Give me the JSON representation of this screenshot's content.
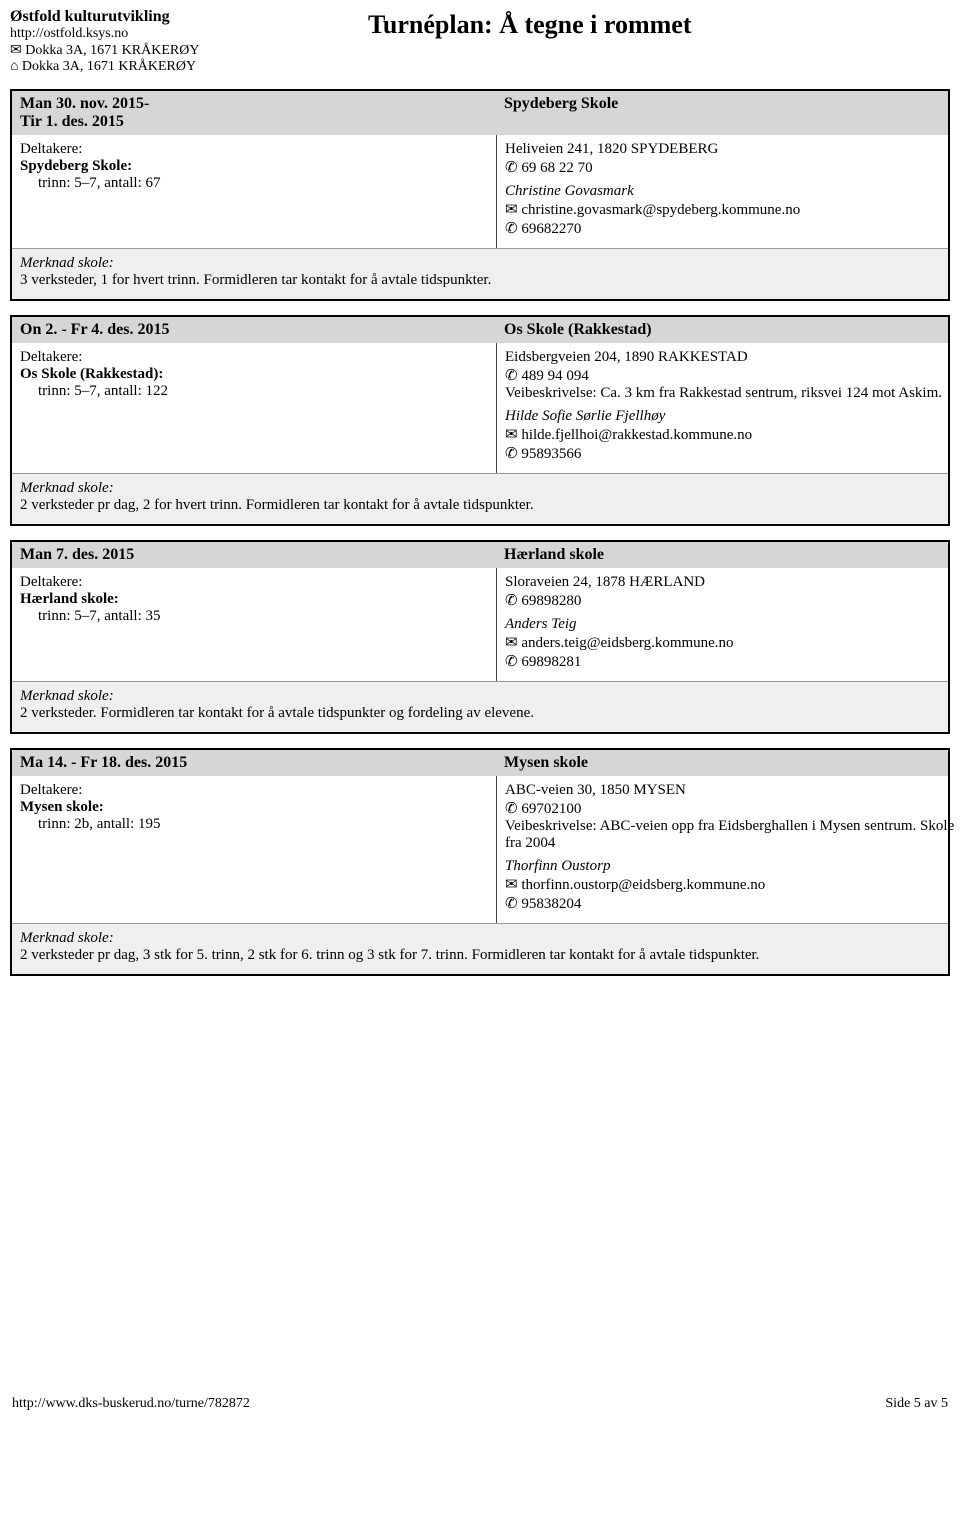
{
  "header": {
    "org": "Østfold kulturutvikling",
    "url": "http://ostfold.ksys.no",
    "addr1": "✉ Dokka 3A, 1671 KRÅKERØY",
    "addr2": "⌂ Dokka 3A, 1671 KRÅKERØY",
    "title": "Turnéplan: Å tegne i rommet"
  },
  "events": [
    {
      "date": "Man 30. nov. 2015-\nTir 1. des. 2015",
      "venue": "Spydeberg Skole",
      "participants_label": "Deltakere:",
      "school": "Spydeberg Skole:",
      "detail": "trinn: 5–7, antall: 67",
      "address": "Heliveien 241, 1820 SPYDEBERG",
      "phone": "✆ 69 68 22 70",
      "route": "",
      "contact_name": "Christine Govasmark",
      "contact_email": "✉ christine.govasmark@spydeberg.kommune.no",
      "contact_phone": "✆ 69682270",
      "note_label": "Merknad skole:",
      "note": "3 verksteder, 1 for hvert trinn. Formidleren tar kontakt for å avtale tidspunkter."
    },
    {
      "date": "On 2. - Fr 4. des. 2015",
      "venue": "Os Skole (Rakkestad)",
      "participants_label": "Deltakere:",
      "school": "Os Skole (Rakkestad):",
      "detail": "trinn: 5–7, antall: 122",
      "address": "Eidsbergveien 204, 1890 RAKKESTAD",
      "phone": "✆ 489 94 094",
      "route": "Veibeskrivelse: Ca. 3 km fra Rakkestad sentrum, riksvei 124 mot Askim.",
      "contact_name": "Hilde Sofie Sørlie Fjellhøy",
      "contact_email": "✉ hilde.fjellhoi@rakkestad.kommune.no",
      "contact_phone": "✆ 95893566",
      "note_label": "Merknad skole:",
      "note": "2 verksteder pr dag, 2 for hvert trinn. Formidleren tar kontakt for å avtale tidspunkter."
    },
    {
      "date": "Man 7. des. 2015",
      "venue": "Hærland skole",
      "participants_label": "Deltakere:",
      "school": "Hærland skole:",
      "detail": "trinn: 5–7, antall: 35",
      "address": "Sloraveien 24, 1878 HÆRLAND",
      "phone": "✆ 69898280",
      "route": "",
      "contact_name": "Anders Teig",
      "contact_email": "✉ anders.teig@eidsberg.kommune.no",
      "contact_phone": "✆ 69898281",
      "note_label": "Merknad skole:",
      "note": "2 verksteder. Formidleren tar kontakt for å avtale tidspunkter og fordeling av elevene."
    },
    {
      "date": "Ma 14. - Fr 18. des. 2015",
      "venue": "Mysen skole",
      "participants_label": "Deltakere:",
      "school": "Mysen skole:",
      "detail": "trinn: 2b, antall: 195",
      "address": "ABC-veien 30, 1850 MYSEN",
      "phone": "✆ 69702100",
      "route": "Veibeskrivelse: ABC-veien opp fra Eidsberghallen i Mysen sentrum. Skole fra 2004",
      "contact_name": "Thorfinn Oustorp",
      "contact_email": "✉ thorfinn.oustorp@eidsberg.kommune.no",
      "contact_phone": "✆ 95838204",
      "note_label": "Merknad skole:",
      "note": "2 verksteder pr dag, 3 stk for 5. trinn, 2 stk for 6. trinn og 3 stk for 7. trinn. Formidleren tar kontakt for å avtale tidspunkter."
    }
  ],
  "footer": {
    "url": "http://www.dks-buskerud.no/turne/782872",
    "page": "Side 5 av 5"
  }
}
